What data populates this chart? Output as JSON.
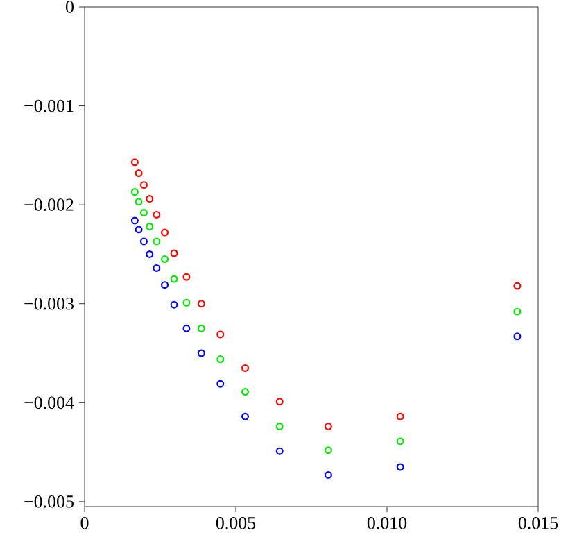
{
  "chart_data": {
    "type": "scatter",
    "marker": "circle",
    "x": [
      0.00166,
      0.00179,
      0.00196,
      0.00215,
      0.00238,
      0.00265,
      0.00296,
      0.00337,
      0.00386,
      0.00449,
      0.00531,
      0.00645,
      0.00806,
      0.01044,
      0.01431
    ],
    "xlim": [
      0,
      0.015
    ],
    "xticks": [
      0,
      0.005,
      {
        "value": 0.01,
        "label": "0.010"
      },
      0.015
    ],
    "ylim": [
      -0.00505,
      0
    ],
    "yticks": [
      {
        "value": -0.005,
        "label": "−0.005"
      },
      {
        "value": -0.004,
        "label": "−0.004"
      },
      {
        "value": -0.003,
        "label": "−0.003"
      },
      {
        "value": -0.002,
        "label": "−0.002"
      },
      {
        "value": -0.001,
        "label": "−0.001"
      },
      0
    ],
    "series": [
      {
        "color": "#ff0000",
        "values": [
          -0.00157,
          -0.00168,
          -0.0018,
          -0.00194,
          -0.0021,
          -0.00228,
          -0.00249,
          -0.00273,
          -0.003,
          -0.00331,
          -0.00365,
          -0.00399,
          -0.00424,
          -0.00414,
          -0.00282
        ]
      },
      {
        "color": "#00e600",
        "values": [
          -0.00187,
          -0.00197,
          -0.00208,
          -0.00222,
          -0.00237,
          -0.00255,
          -0.00275,
          -0.00299,
          -0.00325,
          -0.00356,
          -0.00389,
          -0.00424,
          -0.00448,
          -0.00439,
          -0.00308
        ]
      },
      {
        "color": "#0000ff",
        "values": [
          -0.00216,
          -0.00225,
          -0.00237,
          -0.0025,
          -0.00264,
          -0.00281,
          -0.00301,
          -0.00325,
          -0.0035,
          -0.00381,
          -0.00414,
          -0.00449,
          -0.00473,
          -0.00465,
          -0.00333
        ]
      }
    ]
  }
}
